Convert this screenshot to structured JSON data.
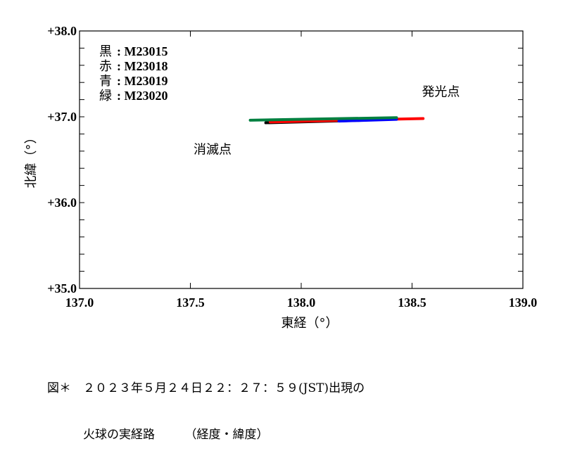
{
  "chart_data": {
    "type": "line",
    "title": "",
    "xlabel": "東経（°）",
    "ylabel": "北緯（°）",
    "xlim": [
      137.0,
      139.0
    ],
    "ylim": [
      35.0,
      38.0
    ],
    "x_ticks": [
      "137.0",
      "137.5",
      "138.0",
      "138.5",
      "139.0"
    ],
    "y_ticks": [
      "+35.0",
      "+36.0",
      "+37.0",
      "+38.0"
    ],
    "y_minor_tick_step": 0.2,
    "grid": false,
    "legend_position": "upper-left",
    "legend": [
      {
        "color_name": "黒",
        "label": "M23015",
        "color": "#000000"
      },
      {
        "color_name": "赤",
        "label": "M23018",
        "color": "#ff0000"
      },
      {
        "color_name": "青",
        "label": "M23019",
        "color": "#0000ff"
      },
      {
        "color_name": "緑",
        "label": "M23020",
        "color": "#008040"
      }
    ],
    "series": [
      {
        "name": "M23015",
        "color": "#000000",
        "points": [
          [
            137.84,
            36.93
          ],
          [
            138.29,
            36.96
          ]
        ]
      },
      {
        "name": "M23018",
        "color": "#ff0000",
        "points": [
          [
            137.86,
            36.94
          ],
          [
            138.55,
            36.98
          ]
        ]
      },
      {
        "name": "M23019",
        "color": "#0000ff",
        "points": [
          [
            138.17,
            36.95
          ],
          [
            138.43,
            36.97
          ]
        ]
      },
      {
        "name": "M23020",
        "color": "#008040",
        "points": [
          [
            137.77,
            36.96
          ],
          [
            138.43,
            36.99
          ]
        ]
      }
    ],
    "annotations": [
      {
        "text": "発光点",
        "x": 138.63,
        "y": 37.24
      },
      {
        "text": "消滅点",
        "x": 137.6,
        "y": 36.57
      }
    ]
  },
  "caption": {
    "line1": "図＊　２０２３年５月２４日２２：２７：５９(JST)出現の",
    "line2": "　　　火球の実経路　　　（経度・緯度）"
  }
}
